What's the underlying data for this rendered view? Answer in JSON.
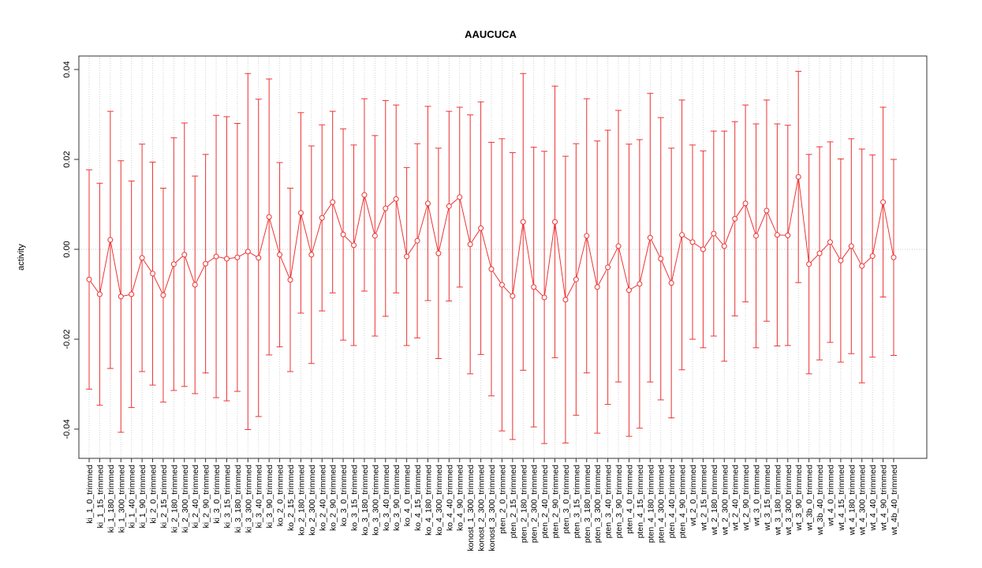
{
  "chart_data": {
    "type": "errorbar",
    "title": "AAUCUCA",
    "ylabel": "activity",
    "categories": [
      "ki_1_0_trimmed",
      "ki_1_15_trimmed",
      "ki_1_180_trimmed",
      "ki_1_300_trimmed",
      "ki_1_40_trimmed",
      "ki_1_90_trimmed",
      "ki_2_0_trimmed",
      "ki_2_15_trimmed",
      "ki_2_180_trimmed",
      "ki_2_300_trimmed",
      "ki_2_40_trimmed",
      "ki_2_90_trimmed",
      "ki_3_0_trimmed",
      "ki_3_15_trimmed",
      "ki_3_180_trimmed",
      "ki_3_300_trimmed",
      "ki_3_40_trimmed",
      "ki_3_90_trimmed",
      "ko_2_0_trimmed",
      "ko_2_15_trimmed",
      "ko_2_180_trimmed",
      "ko_2_300_trimmed",
      "ko_2_40_trimmed",
      "ko_2_90_trimmed",
      "ko_3_0_trimmed",
      "ko_3_15_trimmed",
      "ko_3_180_trimmed",
      "ko_3_300_trimmed",
      "ko_3_40_trimmed",
      "ko_3_90_trimmed",
      "ko_4_0_trimmed",
      "ko_4_15_trimmed",
      "ko_4_180_trimmed",
      "ko_4_300_trimmed",
      "ko_4_40_trimmed",
      "ko_4_90_trimmed",
      "konost_1_300_trimmed",
      "konost_2_300_trimmed",
      "konost_3_300_trimmed",
      "pten_2_0_trimmed",
      "pten_2_15_trimmed",
      "pten_2_180_trimmed",
      "pten_2_300_trimmed",
      "pten_2_40_trimmed",
      "pten_2_90_trimmed",
      "pten_3_0_trimmed",
      "pten_3_15_trimmed",
      "pten_3_180_trimmed",
      "pten_3_300_trimmed",
      "pten_3_40_trimmed",
      "pten_3_90_trimmed",
      "pten_4_0_trimmed",
      "pten_4_15_trimmed",
      "pten_4_180_trimmed",
      "pten_4_300_trimmed",
      "pten_4_40_trimmed",
      "pten_4_90_trimmed",
      "wt_2_0_trimmed",
      "wt_2_15_trimmed",
      "wt_2_180_trimmed",
      "wt_2_300_trimmed",
      "wt_2_40_trimmed",
      "wt_2_90_trimmed",
      "wt_3_0_trimmed",
      "wt_3_15_trimmed",
      "wt_3_180_trimmed",
      "wt_3_300_trimmed",
      "wt_3_90_trimmed",
      "wt_3b_0_trimmed",
      "wt_3b_40_trimmed",
      "wt_4_0_trimmed",
      "wt_4_15_trimmed",
      "wt_4_180_trimmed",
      "wt_4_300_trimmed",
      "wt_4_40_trimmed",
      "wt_4_90_trimmed",
      "wt_4b_40_trimmed"
    ],
    "values": [
      -0.0067,
      -0.01,
      0.0021,
      -0.0105,
      -0.01,
      -0.0019,
      -0.0054,
      -0.0102,
      -0.0033,
      -0.0012,
      -0.0079,
      -0.0032,
      -0.0016,
      -0.0021,
      -0.0018,
      -0.0005,
      -0.0019,
      0.0072,
      -0.0012,
      -0.0068,
      0.0081,
      -0.0012,
      0.007,
      0.0105,
      0.0033,
      0.0009,
      0.0121,
      0.003,
      0.0091,
      0.0112,
      -0.0016,
      0.0019,
      0.0102,
      -0.0009,
      0.0096,
      0.0116,
      0.0011,
      0.0047,
      -0.0044,
      -0.0079,
      -0.0104,
      0.0061,
      -0.0084,
      -0.0107,
      0.0061,
      -0.0112,
      -0.0067,
      0.003,
      -0.0084,
      -0.004,
      0.0007,
      -0.0091,
      -0.0077,
      0.0026,
      -0.0021,
      -0.0075,
      0.0032,
      0.0016,
      0.0,
      0.0035,
      0.0007,
      0.0068,
      0.0102,
      0.003,
      0.0086,
      0.0032,
      0.0031,
      0.0161,
      -0.0033,
      -0.0009,
      0.0016,
      -0.0025,
      0.0007,
      -0.0037,
      -0.0015,
      0.0105,
      -0.0018
    ],
    "errors": [
      0.0244,
      0.0247,
      0.0286,
      0.0302,
      0.0252,
      0.0253,
      0.0248,
      0.0238,
      0.0281,
      0.0293,
      0.0242,
      0.0243,
      0.0314,
      0.0316,
      0.0298,
      0.0396,
      0.0353,
      0.0307,
      0.0205,
      0.0204,
      0.0223,
      0.0242,
      0.0207,
      0.0202,
      0.0235,
      0.0223,
      0.0214,
      0.0223,
      0.024,
      0.0209,
      0.0198,
      0.0216,
      0.0216,
      0.0234,
      0.0211,
      0.02,
      0.0288,
      0.0281,
      0.0282,
      0.0325,
      0.0319,
      0.033,
      0.0311,
      0.0325,
      0.0302,
      0.0319,
      0.0302,
      0.0305,
      0.0325,
      0.0305,
      0.0302,
      0.0325,
      0.0321,
      0.0321,
      0.0314,
      0.03,
      0.03,
      0.0216,
      0.0219,
      0.0228,
      0.0256,
      0.0216,
      0.0219,
      0.0249,
      0.0246,
      0.0247,
      0.0245,
      0.0235,
      0.0244,
      0.0237,
      0.0223,
      0.0226,
      0.0239,
      0.026,
      0.0225,
      0.0211,
      0.0218
    ],
    "color": "#ee3333",
    "ylim": [
      -0.0465,
      0.043
    ],
    "yticks": [
      -0.04,
      -0.02,
      {
        "value": 0,
        "label": "0.00"
      },
      0.02,
      0.04
    ],
    "hline": 0,
    "grid": true
  }
}
